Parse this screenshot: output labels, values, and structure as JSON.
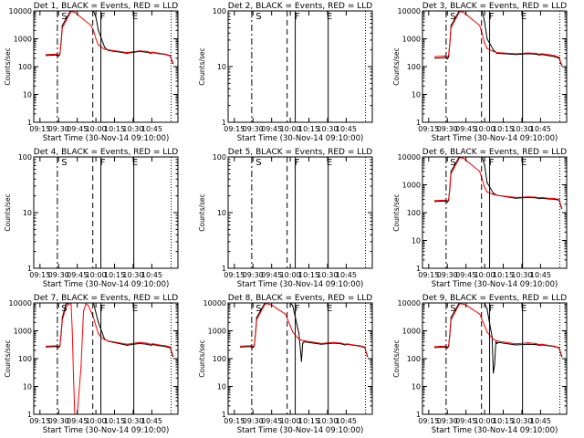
{
  "chart_data": [
    {
      "type": "line",
      "title": "Det 1, BLACK = Events, RED = LLD",
      "xlabel": "Start Time (30-Nov-14 09:10:00)",
      "ylabel": "Counts/sec",
      "ymax": 10000,
      "yticks": [
        "1",
        "10",
        "100",
        "1000",
        "10000"
      ],
      "markers": [
        "S",
        "F",
        "E"
      ],
      "series": [
        {
          "name": "Events",
          "color": "#000000",
          "t": [
            10,
            18,
            20,
            21,
            22,
            23,
            29,
            30,
            33,
            36,
            40,
            46,
            48,
            50,
            52,
            57,
            60,
            75,
            85,
            91,
            94,
            96,
            101,
            106,
            110,
            111,
            112
          ],
          "v": [
            250,
            260,
            240,
            270,
            800,
            3000,
            9000,
            10000,
            10000,
            10000,
            10000,
            10000,
            10000,
            6000,
            2000,
            500,
            380,
            300,
            350,
            330,
            300,
            320,
            290,
            270,
            240,
            160,
            130
          ]
        },
        {
          "name": "LLD",
          "color": "#ff0000",
          "t": [
            10,
            18,
            20,
            21,
            22,
            23,
            29,
            30,
            33,
            36,
            40,
            46,
            48,
            50,
            52,
            57,
            60,
            75,
            85,
            91,
            94,
            96,
            101,
            106,
            110,
            111,
            112
          ],
          "v": [
            270,
            280,
            260,
            290,
            700,
            2500,
            8000,
            9500,
            9000,
            7000,
            5000,
            3000,
            2000,
            1000,
            600,
            420,
            400,
            320,
            370,
            350,
            320,
            330,
            300,
            280,
            250,
            170,
            140
          ]
        }
      ]
    },
    {
      "type": "line",
      "title": "Det 2, BLACK = Events, RED = LLD",
      "xlabel": "Start Time (30-Nov-14 09:10:00)",
      "ylabel": "Counts/sec",
      "ymax": 100,
      "yticks": [
        "1",
        "10",
        "100"
      ],
      "markers": [
        "S",
        "F",
        "E"
      ],
      "series": []
    },
    {
      "type": "line",
      "title": "Det 3, BLACK = Events, RED = LLD",
      "xlabel": "Start Time (30-Nov-14 09:10:00)",
      "ylabel": "Counts/sec",
      "ymax": 10000,
      "yticks": [
        "1",
        "10",
        "100",
        "1000",
        "10000"
      ],
      "markers": [
        "S",
        "F",
        "E"
      ],
      "series": [
        {
          "name": "Events",
          "color": "#000000",
          "t": [
            10,
            18,
            20,
            21,
            22,
            23,
            29,
            30,
            33,
            36,
            40,
            46,
            48,
            50,
            52,
            57,
            60,
            75,
            85,
            91,
            94,
            96,
            101,
            106,
            110,
            111,
            112
          ],
          "v": [
            200,
            210,
            190,
            220,
            700,
            3000,
            9000,
            10000,
            10000,
            10000,
            10000,
            10000,
            10000,
            4000,
            1000,
            400,
            300,
            270,
            290,
            280,
            260,
            270,
            250,
            230,
            200,
            140,
            110
          ]
        },
        {
          "name": "LLD",
          "color": "#ff0000",
          "t": [
            10,
            18,
            20,
            21,
            22,
            23,
            29,
            30,
            33,
            36,
            40,
            46,
            48,
            50,
            52,
            57,
            60,
            75,
            85,
            91,
            94,
            96,
            101,
            106,
            110,
            111,
            112
          ],
          "v": [
            230,
            240,
            220,
            250,
            700,
            2500,
            8000,
            9500,
            9000,
            7000,
            5000,
            3000,
            1500,
            700,
            450,
            350,
            320,
            290,
            310,
            300,
            280,
            290,
            270,
            250,
            220,
            150,
            120
          ]
        }
      ]
    },
    {
      "type": "line",
      "title": "Det 4, BLACK = Events, RED = LLD",
      "xlabel": "Start Time (30-Nov-14 09:10:00)",
      "ylabel": "Counts/sec",
      "ymax": 100,
      "yticks": [
        "1",
        "10",
        "100"
      ],
      "markers": [
        "S",
        "F",
        "E"
      ],
      "series": []
    },
    {
      "type": "line",
      "title": "Det 5, BLACK = Events, RED = LLD",
      "xlabel": "Start Time (30-Nov-14 09:10:00)",
      "ylabel": "Counts/sec",
      "ymax": 100,
      "yticks": [
        "1",
        "10",
        "100"
      ],
      "markers": [
        "S",
        "F",
        "E"
      ],
      "series": []
    },
    {
      "type": "line",
      "title": "Det 6, BLACK = Events, RED = LLD",
      "xlabel": "Start Time (30-Nov-14 09:10:00)",
      "ylabel": "Counts/sec",
      "ymax": 10000,
      "yticks": [
        "1",
        "10",
        "100",
        "1000",
        "10000"
      ],
      "markers": [
        "S",
        "F",
        "E"
      ],
      "series": [
        {
          "name": "Events",
          "color": "#000000",
          "t": [
            10,
            18,
            20,
            21,
            22,
            23,
            29,
            30,
            33,
            36,
            40,
            46,
            48,
            50,
            52,
            57,
            60,
            75,
            85,
            91,
            94,
            96,
            101,
            106,
            110,
            111,
            112
          ],
          "v": [
            250,
            260,
            240,
            270,
            800,
            3000,
            9000,
            10000,
            10000,
            10000,
            10000,
            10000,
            10000,
            5000,
            1200,
            500,
            420,
            330,
            350,
            340,
            320,
            330,
            310,
            300,
            280,
            190,
            140
          ]
        },
        {
          "name": "LLD",
          "color": "#ff0000",
          "t": [
            10,
            18,
            20,
            21,
            22,
            23,
            29,
            30,
            33,
            36,
            40,
            46,
            48,
            50,
            52,
            57,
            60,
            75,
            85,
            91,
            94,
            96,
            101,
            106,
            110,
            111,
            112
          ],
          "v": [
            270,
            280,
            260,
            290,
            700,
            2500,
            8000,
            9500,
            9000,
            7000,
            5000,
            3000,
            1600,
            800,
            550,
            450,
            420,
            350,
            370,
            360,
            340,
            350,
            330,
            320,
            300,
            200,
            150
          ]
        }
      ]
    },
    {
      "type": "line",
      "title": "Det 7, BLACK = Events, RED = LLD",
      "xlabel": "Start Time (30-Nov-14 09:10:00)",
      "ylabel": "Counts/sec",
      "ymax": 10000,
      "yticks": [
        "1",
        "10",
        "100",
        "1000",
        "10000"
      ],
      "markers": [
        "S",
        "F",
        "E"
      ],
      "series": [
        {
          "name": "Events",
          "color": "#000000",
          "t": [
            10,
            18,
            20,
            21,
            22,
            23,
            26,
            28,
            30,
            33,
            36,
            40,
            46,
            48,
            52,
            57,
            60,
            75,
            85,
            91,
            94,
            96,
            101,
            106,
            110,
            111,
            112
          ],
          "v": [
            260,
            270,
            250,
            280,
            800,
            3000,
            9000,
            10000,
            10000,
            10000,
            10000,
            10000,
            10000,
            10000,
            2000,
            500,
            420,
            300,
            350,
            330,
            300,
            320,
            290,
            270,
            240,
            160,
            120
          ]
        },
        {
          "name": "LLD",
          "color": "#ff0000",
          "t": [
            10,
            18,
            20,
            21,
            22,
            23,
            26,
            28,
            30,
            31,
            32,
            33,
            34,
            35,
            38,
            40,
            42,
            44,
            46,
            48,
            50,
            52,
            54,
            57,
            60,
            75,
            85,
            91,
            94,
            96,
            101,
            106,
            110,
            111,
            112
          ],
          "v": [
            280,
            290,
            270,
            300,
            700,
            2500,
            7000,
            9000,
            9500,
            1000,
            20,
            1,
            1,
            1,
            50,
            5000,
            9500,
            8000,
            5000,
            3000,
            1500,
            800,
            600,
            480,
            430,
            330,
            380,
            360,
            330,
            340,
            310,
            290,
            260,
            170,
            130
          ]
        }
      ]
    },
    {
      "type": "line",
      "title": "Det 8, BLACK = Events, RED = LLD",
      "xlabel": "Start Time (30-Nov-14 09:10:00)",
      "ylabel": "Counts/sec",
      "ymax": 10000,
      "yticks": [
        "1",
        "10",
        "100",
        "1000",
        "10000"
      ],
      "markers": [
        "S",
        "F",
        "E"
      ],
      "series": [
        {
          "name": "Events",
          "color": "#000000",
          "t": [
            10,
            18,
            20,
            21,
            22,
            23,
            29,
            30,
            33,
            36,
            40,
            46,
            48,
            50,
            52,
            57,
            59,
            60,
            61,
            75,
            85,
            91,
            94,
            96,
            101,
            106,
            110,
            111,
            112
          ],
          "v": [
            260,
            270,
            250,
            280,
            800,
            3000,
            9000,
            10000,
            10000,
            10000,
            10000,
            10000,
            10000,
            10000,
            8000,
            800,
            80,
            350,
            400,
            330,
            360,
            340,
            310,
            330,
            300,
            280,
            250,
            170,
            120
          ]
        },
        {
          "name": "LLD",
          "color": "#ff0000",
          "t": [
            10,
            18,
            20,
            21,
            22,
            23,
            29,
            30,
            33,
            36,
            40,
            46,
            48,
            50,
            52,
            57,
            60,
            75,
            85,
            91,
            94,
            96,
            101,
            106,
            110,
            111,
            112
          ],
          "v": [
            280,
            290,
            270,
            300,
            700,
            2500,
            8000,
            9500,
            9000,
            8000,
            6000,
            4000,
            2500,
            1500,
            900,
            500,
            450,
            350,
            380,
            360,
            330,
            340,
            310,
            290,
            260,
            170,
            130
          ]
        }
      ]
    },
    {
      "type": "line",
      "title": "Det 9, BLACK = Events, RED = LLD",
      "xlabel": "Start Time (30-Nov-14 09:10:00)",
      "ylabel": "Counts/sec",
      "ymax": 10000,
      "yticks": [
        "1",
        "10",
        "100",
        "1000",
        "10000"
      ],
      "markers": [
        "S",
        "F",
        "E"
      ],
      "series": [
        {
          "name": "Events",
          "color": "#000000",
          "t": [
            10,
            18,
            20,
            21,
            22,
            23,
            29,
            30,
            33,
            36,
            40,
            46,
            48,
            50,
            52,
            56,
            57,
            58,
            59,
            60,
            61,
            75,
            85,
            91,
            94,
            96,
            101,
            106,
            110,
            111,
            112
          ],
          "v": [
            250,
            260,
            240,
            270,
            800,
            3000,
            9000,
            10000,
            10000,
            10000,
            10000,
            10000,
            10000,
            10000,
            6000,
            600,
            30,
            60,
            400,
            350,
            380,
            310,
            330,
            320,
            300,
            310,
            290,
            270,
            240,
            160,
            120
          ]
        },
        {
          "name": "LLD",
          "color": "#ff0000",
          "t": [
            10,
            18,
            20,
            21,
            22,
            23,
            29,
            30,
            33,
            36,
            40,
            46,
            48,
            50,
            52,
            57,
            60,
            75,
            85,
            91,
            94,
            96,
            101,
            106,
            110,
            111,
            112
          ],
          "v": [
            270,
            280,
            260,
            290,
            700,
            2500,
            8000,
            9500,
            9000,
            8000,
            6000,
            4000,
            2500,
            1500,
            900,
            500,
            430,
            340,
            370,
            350,
            320,
            330,
            300,
            280,
            250,
            170,
            130
          ]
        }
      ]
    }
  ],
  "x_axis": {
    "min": 0,
    "max": 116,
    "ticks": [
      {
        "t": 5,
        "label": "09:15"
      },
      {
        "t": 20,
        "label": "09:30"
      },
      {
        "t": 35,
        "label": "09:45"
      },
      {
        "t": 50,
        "label": "10:00"
      },
      {
        "t": 65,
        "label": "10:15"
      },
      {
        "t": 80,
        "label": "10:30"
      },
      {
        "t": 95,
        "label": "10:45"
      }
    ]
  },
  "event_lines": [
    {
      "t": 19,
      "style": "dashdot"
    },
    {
      "t": 47.5,
      "style": "dashed"
    },
    {
      "t": 54,
      "style": "solid"
    },
    {
      "t": 80.5,
      "style": "solid"
    },
    {
      "t": 110.5,
      "style": "dotted"
    }
  ],
  "marker_positions": {
    "S": 24.5,
    "F": 55.5,
    "E": 81.5
  }
}
